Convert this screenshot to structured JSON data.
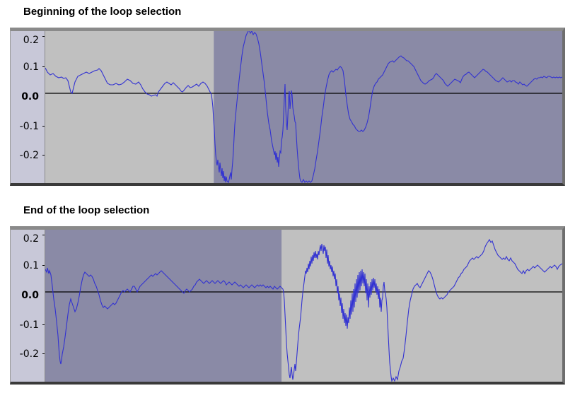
{
  "panels": [
    {
      "title": "Beginning of the loop selection",
      "axis_ticks": [
        "0.2",
        "0.1",
        "0.0",
        "-0.1",
        "-0.2"
      ],
      "selection": {
        "start_fraction": 0.326,
        "end_fraction": 1.0
      }
    },
    {
      "title": "End of the loop selection",
      "axis_ticks": [
        "0.2",
        "0.1",
        "0.0",
        "-0.1",
        "-0.2"
      ],
      "selection": {
        "start_fraction": 0.0,
        "end_fraction": 0.457
      }
    }
  ],
  "colors": {
    "background_unselected": "#c0c0c0",
    "background_selected": "#8a8aa6",
    "waveform": "#3232d2",
    "zero_line": "#000000",
    "ruler": "#c8c8d8"
  }
}
